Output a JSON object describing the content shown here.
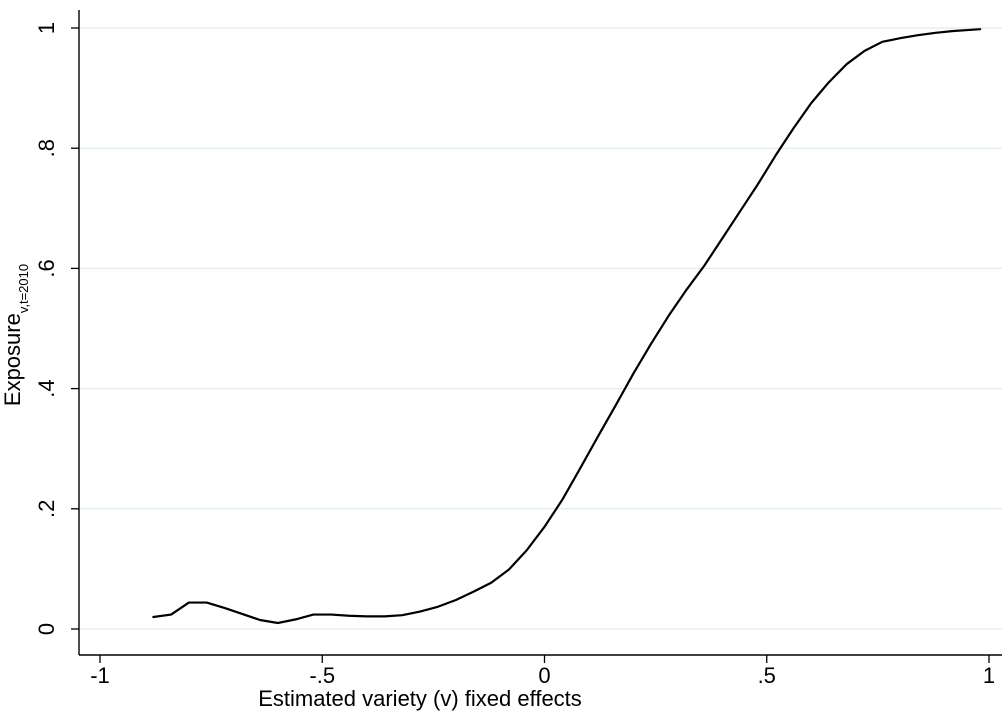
{
  "chart_data": {
    "type": "line",
    "title": "",
    "xlabel": "Estimated variety (v) fixed effects",
    "ylabel": {
      "main": "Exposure",
      "subscript": "v,t=2010"
    },
    "xlim": [
      -1,
      1
    ],
    "ylim": [
      0,
      1
    ],
    "x_ticks": [
      {
        "value": -1,
        "label": "-1"
      },
      {
        "value": -0.5,
        "label": "-.5"
      },
      {
        "value": 0,
        "label": "0"
      },
      {
        "value": 0.5,
        "label": ".5"
      },
      {
        "value": 1,
        "label": "1"
      }
    ],
    "y_ticks": [
      {
        "value": 0,
        "label": "0"
      },
      {
        "value": 0.2,
        "label": ".2"
      },
      {
        "value": 0.4,
        "label": ".4"
      },
      {
        "value": 0.6,
        "label": ".6"
      },
      {
        "value": 0.8,
        "label": ".8"
      },
      {
        "value": 1,
        "label": "1"
      }
    ],
    "grid": true,
    "colors": {
      "line": "#000000",
      "grid": "#dbe7ea",
      "axis": "#000000",
      "background": "#ffffff"
    },
    "series": [
      {
        "x": [
          -0.88,
          -0.84,
          -0.8,
          -0.76,
          -0.72,
          -0.68,
          -0.64,
          -0.6,
          -0.56,
          -0.52,
          -0.48,
          -0.44,
          -0.4,
          -0.36,
          -0.32,
          -0.28,
          -0.24,
          -0.2,
          -0.16,
          -0.12,
          -0.08,
          -0.04,
          0.0,
          0.04,
          0.08,
          0.12,
          0.16,
          0.2,
          0.24,
          0.28,
          0.32,
          0.36,
          0.4,
          0.44,
          0.48,
          0.52,
          0.56,
          0.6,
          0.64,
          0.68,
          0.72,
          0.76,
          0.8,
          0.84,
          0.88,
          0.92,
          0.96,
          0.98
        ],
        "y": [
          0.02,
          0.024,
          0.044,
          0.044,
          0.035,
          0.025,
          0.015,
          0.01,
          0.016,
          0.024,
          0.024,
          0.022,
          0.021,
          0.021,
          0.023,
          0.029,
          0.037,
          0.048,
          0.062,
          0.077,
          0.099,
          0.131,
          0.17,
          0.215,
          0.267,
          0.32,
          0.372,
          0.425,
          0.475,
          0.522,
          0.565,
          0.605,
          0.65,
          0.695,
          0.74,
          0.788,
          0.833,
          0.875,
          0.91,
          0.94,
          0.962,
          0.977,
          0.983,
          0.988,
          0.992,
          0.995,
          0.997,
          0.998
        ]
      }
    ]
  }
}
